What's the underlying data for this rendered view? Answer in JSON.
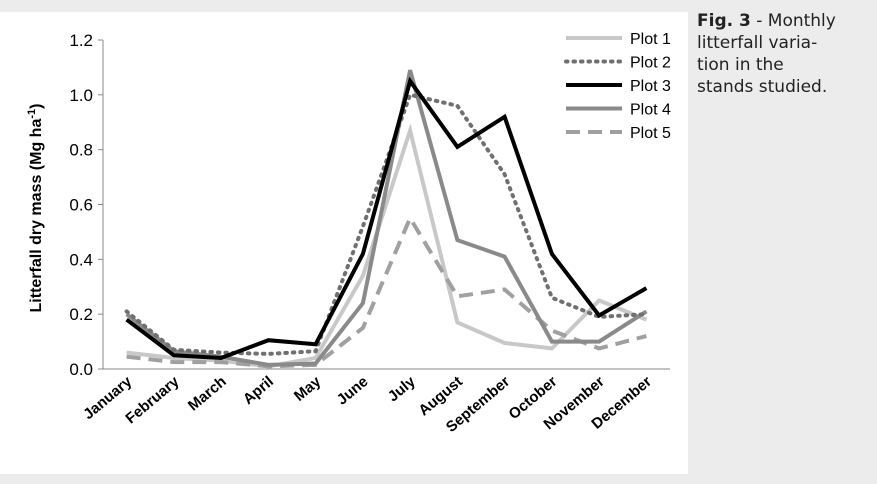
{
  "caption": {
    "label": "Fig. 3",
    "line1": " - Monthly",
    "line2": "litterfall varia-",
    "line3": "tion in the",
    "line4": "stands studied."
  },
  "chart_data": {
    "type": "line",
    "title": "",
    "xlabel": "",
    "ylabel": "Litterfall dry mass (Mg ha",
    "ylabel_sup": "-1",
    "ylabel_end": ")",
    "ylim": [
      0,
      1.2
    ],
    "yticks": [
      "0.0",
      "0.2",
      "0.4",
      "0.6",
      "0.8",
      "1.0",
      "1.2"
    ],
    "grid": false,
    "legend_position": "top-right",
    "categories": [
      "January",
      "February",
      "March",
      "April",
      "May",
      "June",
      "July",
      "August",
      "September",
      "October",
      "November",
      "December"
    ],
    "series": [
      {
        "name": "Plot 1",
        "color": "#c8c8c8",
        "dash": "solid",
        "values": [
          0.06,
          0.04,
          0.03,
          0.01,
          0.04,
          0.34,
          0.87,
          0.17,
          0.095,
          0.075,
          0.25,
          0.18
        ]
      },
      {
        "name": "Plot 2",
        "color": "#707070",
        "dash": "dotted",
        "values": [
          0.21,
          0.07,
          0.06,
          0.055,
          0.065,
          0.52,
          1.0,
          0.96,
          0.71,
          0.26,
          0.19,
          0.2
        ]
      },
      {
        "name": "Plot 3",
        "color": "#000000",
        "dash": "solid",
        "values": [
          0.18,
          0.05,
          0.04,
          0.105,
          0.09,
          0.42,
          1.05,
          0.81,
          0.92,
          0.42,
          0.195,
          0.295
        ]
      },
      {
        "name": "Plot 4",
        "color": "#8a8a8a",
        "dash": "solid",
        "values": [
          0.2,
          0.065,
          0.045,
          0.015,
          0.02,
          0.24,
          1.09,
          0.47,
          0.41,
          0.1,
          0.1,
          0.21
        ]
      },
      {
        "name": "Plot 5",
        "color": "#a0a0a0",
        "dash": "dashed",
        "values": [
          0.045,
          0.025,
          0.025,
          0.01,
          0.015,
          0.15,
          0.55,
          0.265,
          0.29,
          0.14,
          0.075,
          0.12
        ]
      }
    ]
  }
}
